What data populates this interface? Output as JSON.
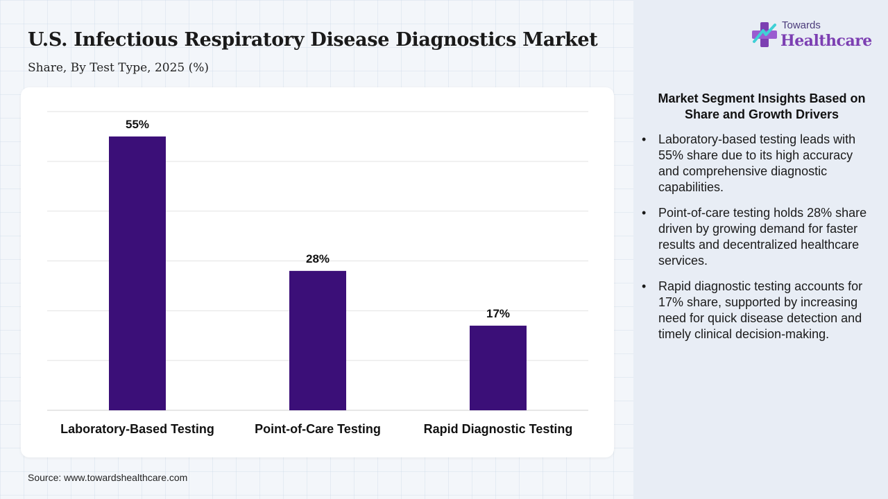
{
  "header": {
    "title": "U.S. Infectious Respiratory Disease Diagnostics Market",
    "subtitle": "Share, By Test Type, 2025 (%)"
  },
  "chart_data": {
    "type": "bar",
    "categories": [
      "Laboratory-Based Testing",
      "Point-of-Care Testing",
      "Rapid Diagnostic Testing"
    ],
    "values": [
      55,
      28,
      17
    ],
    "value_labels": [
      "55%",
      "28%",
      "17%"
    ],
    "ylim": [
      0,
      60
    ],
    "grid": true,
    "bar_color": "#3b0f78"
  },
  "source": "Source: www.towardshealthcare.com",
  "logo": {
    "small": "Towards",
    "big": "Healthcare",
    "icon": "medical-cross-icon"
  },
  "insights": {
    "title": "Market Segment Insights Based on Share and Growth Drivers",
    "bullet": "•",
    "items": [
      "Laboratory-based testing leads with 55% share due to its high accuracy and comprehensive diagnostic capabilities.",
      "Point-of-care testing holds 28% share driven by growing demand for faster results and decentralized healthcare services.",
      "Rapid diagnostic testing accounts for 17% share, supported by increasing need for quick disease detection and timely clinical decision-making."
    ]
  }
}
